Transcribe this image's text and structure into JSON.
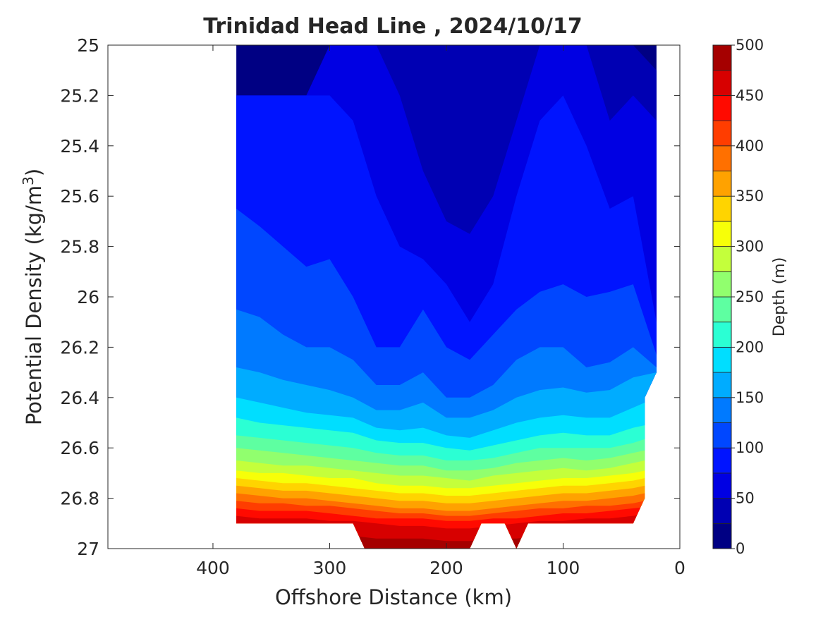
{
  "chart_data": {
    "type": "heatmap",
    "title": "Trinidad Head Line , 2024/10/17",
    "xlabel": "Offshore Distance (km)",
    "ylabel_main": "Potential Density (kg/m",
    "ylabel_sup": "3",
    "ylabel_tail": ")",
    "colorbar_label": "Depth (m)",
    "xlim": [
      490,
      0
    ],
    "ylim": [
      25,
      27
    ],
    "x_reversed": true,
    "y_reversed": true,
    "x_ticks": [
      400,
      300,
      200,
      100,
      0
    ],
    "y_ticks": [
      25,
      25.2,
      25.4,
      25.6,
      25.8,
      26,
      26.2,
      26.4,
      26.6,
      26.8,
      27
    ],
    "x_tick_labels": [
      "400",
      "300",
      "200",
      "100",
      "0"
    ],
    "y_tick_labels": [
      "25",
      "25.2",
      "25.4",
      "25.6",
      "25.8",
      "26",
      "26.2",
      "26.4",
      "26.6",
      "26.8",
      "27"
    ],
    "colorbar_range": [
      0,
      500
    ],
    "colorbar_levels": [
      0,
      25,
      50,
      75,
      100,
      125,
      150,
      175,
      200,
      225,
      250,
      275,
      300,
      325,
      350,
      375,
      400,
      425,
      450,
      475,
      500
    ],
    "colorbar_tick_values": [
      0,
      50,
      100,
      150,
      200,
      250,
      300,
      350,
      400,
      450,
      500
    ],
    "colorbar_tick_labels": [
      "0",
      "50",
      "100",
      "150",
      "200",
      "250",
      "300",
      "350",
      "400",
      "450",
      "500"
    ],
    "colormap": [
      "#000083",
      "#0000B3",
      "#0000E3",
      "#0014FF",
      "#0047FF",
      "#007AFF",
      "#00ACFF",
      "#00DEFF",
      "#2BFFD4",
      "#5EFFA1",
      "#91FF6E",
      "#C4FF3B",
      "#F7FF08",
      "#FFD400",
      "#FFA200",
      "#FF7000",
      "#FF3D00",
      "#FF0A00",
      "#D70000",
      "#A50000"
    ],
    "grid": false,
    "contours": {
      "x": [
        380,
        360,
        340,
        320,
        300,
        280,
        260,
        240,
        220,
        200,
        180,
        160,
        140,
        120,
        100,
        80,
        60,
        40,
        20
      ],
      "isopycnal_depths_m": [
        {
          "depth": 25,
          "sigma": [
            25.2,
            25.2,
            25.2,
            25.2,
            25.0,
            25.0,
            25.0,
            25.0,
            25.0,
            25.0,
            25.0,
            25.0,
            25.0,
            25.0,
            25.0,
            25.0,
            25.0,
            25.0,
            25.1
          ]
        },
        {
          "depth": 50,
          "sigma": [
            25.2,
            25.2,
            25.2,
            25.2,
            25.0,
            25.0,
            25.0,
            25.2,
            25.5,
            25.7,
            25.75,
            25.6,
            25.3,
            25.0,
            25.0,
            25.0,
            25.3,
            25.2,
            25.3
          ]
        },
        {
          "depth": 75,
          "sigma": [
            25.2,
            25.2,
            25.2,
            25.2,
            25.2,
            25.3,
            25.6,
            25.8,
            25.85,
            25.95,
            26.1,
            25.95,
            25.6,
            25.3,
            25.2,
            25.4,
            25.65,
            25.6,
            26.1
          ]
        },
        {
          "depth": 100,
          "sigma": [
            25.65,
            25.72,
            25.8,
            25.88,
            25.85,
            26.0,
            26.2,
            26.2,
            26.05,
            26.2,
            26.25,
            26.15,
            26.05,
            25.98,
            25.95,
            26.0,
            25.98,
            25.95,
            26.23
          ]
        },
        {
          "depth": 125,
          "sigma": [
            26.05,
            26.08,
            26.15,
            26.2,
            26.2,
            26.25,
            26.35,
            26.35,
            26.3,
            26.4,
            26.4,
            26.35,
            26.25,
            26.2,
            26.2,
            26.28,
            26.26,
            26.2,
            26.28
          ]
        },
        {
          "depth": 150,
          "sigma": [
            26.28,
            26.3,
            26.33,
            26.35,
            26.37,
            26.4,
            26.45,
            26.45,
            26.42,
            26.48,
            26.48,
            26.45,
            26.4,
            26.37,
            26.36,
            26.38,
            26.37,
            26.32,
            26.3
          ]
        },
        {
          "depth": 175,
          "sigma": [
            26.4,
            26.42,
            26.44,
            26.46,
            26.47,
            26.48,
            26.52,
            26.53,
            26.52,
            26.55,
            26.56,
            26.53,
            26.5,
            26.48,
            26.47,
            26.48,
            26.48,
            26.44,
            26.4
          ]
        },
        {
          "depth": 200,
          "sigma": [
            26.48,
            26.5,
            26.51,
            26.52,
            26.53,
            26.54,
            26.57,
            26.58,
            26.58,
            26.6,
            26.61,
            26.59,
            26.57,
            26.55,
            26.54,
            26.55,
            26.55,
            26.52,
            26.5
          ]
        },
        {
          "depth": 225,
          "sigma": [
            26.55,
            26.56,
            26.57,
            26.58,
            26.59,
            26.6,
            26.62,
            26.63,
            26.63,
            26.65,
            26.65,
            26.64,
            26.62,
            26.6,
            26.6,
            26.6,
            26.6,
            26.58,
            26.55
          ]
        },
        {
          "depth": 250,
          "sigma": [
            26.6,
            26.61,
            26.62,
            26.63,
            26.64,
            26.65,
            26.66,
            26.67,
            26.67,
            26.69,
            26.69,
            26.68,
            26.66,
            26.65,
            26.64,
            26.65,
            26.64,
            26.62,
            26.6
          ]
        },
        {
          "depth": 275,
          "sigma": [
            26.65,
            26.66,
            26.67,
            26.67,
            26.68,
            26.69,
            26.7,
            26.71,
            26.71,
            26.72,
            26.73,
            26.71,
            26.7,
            26.69,
            26.68,
            26.69,
            26.68,
            26.66,
            26.64
          ]
        },
        {
          "depth": 300,
          "sigma": [
            26.69,
            26.7,
            26.7,
            26.71,
            26.72,
            26.72,
            26.74,
            26.75,
            26.75,
            26.76,
            26.76,
            26.75,
            26.74,
            26.73,
            26.72,
            26.72,
            26.71,
            26.7,
            26.68
          ]
        },
        {
          "depth": 325,
          "sigma": [
            26.72,
            26.73,
            26.74,
            26.74,
            26.75,
            26.76,
            26.77,
            26.78,
            26.78,
            26.79,
            26.79,
            26.78,
            26.77,
            26.76,
            26.75,
            26.75,
            26.74,
            26.73,
            26.71
          ]
        },
        {
          "depth": 350,
          "sigma": [
            26.75,
            26.76,
            26.77,
            26.77,
            26.78,
            26.79,
            26.8,
            26.81,
            26.81,
            26.82,
            26.82,
            26.81,
            26.8,
            26.79,
            26.78,
            26.78,
            26.77,
            26.76,
            26.74
          ]
        },
        {
          "depth": 375,
          "sigma": [
            26.78,
            26.79,
            26.8,
            26.8,
            26.81,
            26.82,
            26.83,
            26.84,
            26.84,
            26.85,
            26.85,
            26.84,
            26.83,
            26.82,
            26.81,
            26.81,
            26.8,
            26.79,
            26.77
          ]
        },
        {
          "depth": 400,
          "sigma": [
            26.81,
            26.82,
            26.82,
            26.83,
            26.83,
            26.84,
            26.85,
            26.86,
            26.86,
            26.87,
            26.87,
            26.86,
            26.85,
            26.84,
            26.84,
            26.83,
            26.83,
            26.82,
            26.8
          ]
        },
        {
          "depth": 425,
          "sigma": [
            26.84,
            26.85,
            26.85,
            26.85,
            26.86,
            26.87,
            26.88,
            26.88,
            26.88,
            26.89,
            26.89,
            26.88,
            26.88,
            26.87,
            26.86,
            26.86,
            26.85,
            26.84,
            26.83
          ]
        },
        {
          "depth": 450,
          "sigma": [
            26.87,
            26.88,
            26.88,
            26.88,
            26.89,
            26.89,
            26.9,
            26.91,
            26.91,
            26.92,
            26.92,
            26.91,
            26.9,
            26.89,
            26.89,
            26.88,
            26.88,
            26.87,
            26.86
          ]
        },
        {
          "depth": 475,
          "sigma": [
            26.92,
            26.93,
            26.93,
            26.93,
            26.94,
            26.95,
            26.96,
            26.96,
            26.96,
            26.97,
            26.97,
            26.96,
            26.96,
            26.95,
            26.94,
            26.94,
            26.93,
            26.92,
            26.91
          ]
        }
      ],
      "data_boundary": [
        [
          380,
          25
        ],
        [
          20,
          25
        ],
        [
          20,
          26.3
        ],
        [
          30,
          26.4
        ],
        [
          30,
          26.8
        ],
        [
          40,
          26.9
        ],
        [
          130,
          26.9
        ],
        [
          140,
          27.0
        ],
        [
          150,
          26.9
        ],
        [
          170,
          26.9
        ],
        [
          180,
          27.0
        ],
        [
          270,
          27.0
        ],
        [
          280,
          26.9
        ],
        [
          380,
          26.9
        ]
      ]
    }
  }
}
